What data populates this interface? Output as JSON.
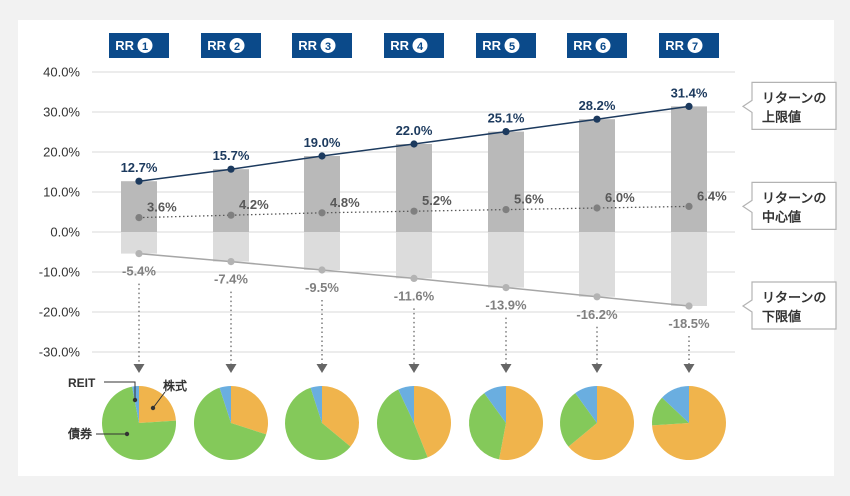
{
  "chart_data": {
    "type": "bar",
    "categories": [
      "RR",
      "RR",
      "RR",
      "RR",
      "RR",
      "RR",
      "RR"
    ],
    "category_numbers": [
      "1",
      "2",
      "3",
      "4",
      "5",
      "6",
      "7"
    ],
    "y_ticks": [
      "40.0%",
      "30.0%",
      "20.0%",
      "10.0%",
      "0.0%",
      "-10.0%",
      "-20.0%",
      "-30.0%"
    ],
    "ylim": [
      -30,
      40
    ],
    "series": [
      {
        "name": "リターンの上限値",
        "values": [
          12.7,
          15.7,
          19.0,
          22.0,
          25.1,
          28.2,
          31.4
        ],
        "labels": [
          "12.7%",
          "15.7%",
          "19.0%",
          "22.0%",
          "25.1%",
          "28.2%",
          "31.4%"
        ]
      },
      {
        "name": "リターンの中心値",
        "values": [
          3.6,
          4.2,
          4.8,
          5.2,
          5.6,
          6.0,
          6.4
        ],
        "labels": [
          "3.6%",
          "4.2%",
          "4.8%",
          "5.2%",
          "5.6%",
          "6.0%",
          "6.4%"
        ]
      },
      {
        "name": "リターンの下限値",
        "values": [
          -5.4,
          -7.4,
          -9.5,
          -11.6,
          -13.9,
          -16.2,
          -18.5
        ],
        "labels": [
          "-5.4%",
          "-7.4%",
          "-9.5%",
          "-11.6%",
          "-13.9%",
          "-16.2%",
          "-18.5%"
        ]
      }
    ],
    "legend": [
      {
        "line1": "リターンの",
        "line2": "上限値"
      },
      {
        "line1": "リターンの",
        "line2": "中心値"
      },
      {
        "line1": "リターンの",
        "line2": "下限値"
      }
    ],
    "legend_position": "right",
    "pies": {
      "slice_names": [
        "株式",
        "債券",
        "REIT"
      ],
      "colors": {
        "株式": "#f0b44c",
        "債券": "#84c95a",
        "REIT": "#6aaee0"
      },
      "fractions": [
        [
          0.24,
          0.73,
          0.03
        ],
        [
          0.3,
          0.65,
          0.05
        ],
        [
          0.36,
          0.59,
          0.05
        ],
        [
          0.44,
          0.49,
          0.07
        ],
        [
          0.53,
          0.37,
          0.1
        ],
        [
          0.64,
          0.26,
          0.1
        ],
        [
          0.74,
          0.13,
          0.13
        ]
      ]
    },
    "colors": {
      "header": "#0b4a8a",
      "upper_line": "#1c3a5e",
      "bar_positive": "#b9b9b9",
      "bar_negative": "#dcdcdc",
      "mid_line": "#595959",
      "lower_line": "#a6a6a6",
      "grid": "#d9d9d9"
    }
  }
}
